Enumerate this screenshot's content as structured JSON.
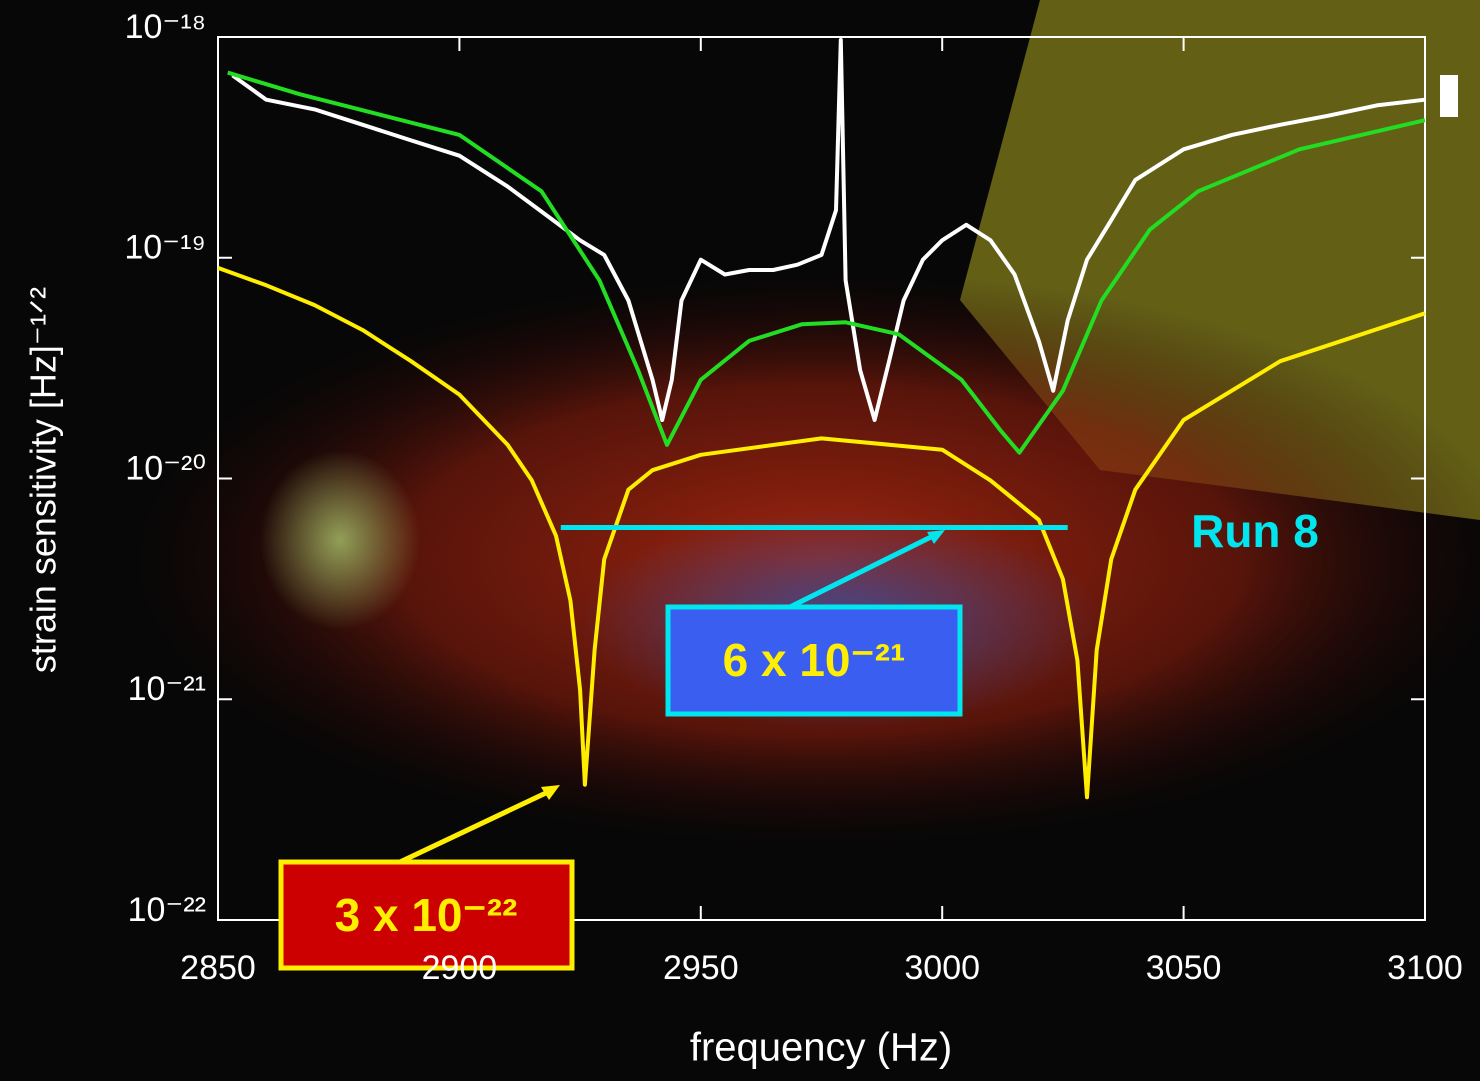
{
  "chart_data": {
    "type": "line",
    "xlabel": "frequency (Hz)",
    "ylabel": "strain sensitivity [Hz]⁻¹ᐟ²",
    "xlim": [
      2850,
      3100
    ],
    "xticks": [
      2850,
      2900,
      2950,
      3000,
      3050,
      3100
    ],
    "ylim": [
      1e-22,
      1e-18
    ],
    "ylog": true,
    "yticks": [
      {
        "value": 1e-22,
        "label": "10⁻²²"
      },
      {
        "value": 1e-21,
        "label": "10⁻²¹"
      },
      {
        "value": 1e-20,
        "label": "10⁻²⁰"
      },
      {
        "value": 1e-19,
        "label": "10⁻¹⁹"
      },
      {
        "value": 1e-18,
        "label": "10⁻¹⁸"
      }
    ],
    "series": [
      {
        "color": "#ffffff",
        "x": [
          2853,
          2860,
          2870,
          2880,
          2890,
          2900,
          2910,
          2918,
          2925,
          2930,
          2935,
          2940,
          2942,
          2944,
          2946,
          2950,
          2955,
          2960,
          2965,
          2970,
          2975,
          2978,
          2979,
          2980,
          2983,
          2986,
          2989,
          2992,
          2996,
          3000,
          3005,
          3010,
          3015,
          3020,
          3023,
          3026,
          3030,
          3035,
          3040,
          3050,
          3060,
          3070,
          3080,
          3090,
          3100
        ],
        "values": [
          6.7e-19,
          5.2e-19,
          4.7e-19,
          4e-19,
          3.4e-19,
          2.9e-19,
          2.1e-19,
          1.56e-19,
          1.2e-19,
          1.03e-19,
          6.4e-20,
          2.8e-20,
          1.84e-20,
          2.8e-20,
          6.4e-20,
          9.8e-20,
          8.4e-20,
          8.8e-20,
          8.8e-20,
          9.3e-20,
          1.03e-19,
          1.64e-19,
          9.7e-19,
          7.9e-20,
          3.1e-20,
          1.84e-20,
          3.4e-20,
          6.4e-20,
          9.8e-20,
          1.2e-19,
          1.41e-19,
          1.2e-19,
          8.4e-20,
          4.2e-20,
          2.5e-20,
          5.2e-20,
          9.8e-20,
          1.48e-19,
          2.25e-19,
          3.1e-19,
          3.6e-19,
          4e-19,
          4.4e-19,
          4.9e-19,
          5.2e-19
        ]
      },
      {
        "color": "#22dd22",
        "x": [
          2852,
          2867,
          2888,
          2900,
          2917,
          2929,
          2937,
          2943,
          2950,
          2960,
          2971,
          2980,
          2991,
          3004,
          3012,
          3016,
          3025,
          3033,
          3043,
          3053,
          3074,
          3100
        ],
        "values": [
          6.9e-19,
          5.5e-19,
          4.2e-19,
          3.6e-19,
          2e-19,
          7.9e-20,
          3.1e-20,
          1.42e-20,
          2.8e-20,
          4.2e-20,
          5e-20,
          5.1e-20,
          4.5e-20,
          2.8e-20,
          1.66e-20,
          1.31e-20,
          2.5e-20,
          6.4e-20,
          1.34e-19,
          2e-19,
          3.1e-19,
          4.2e-19
        ]
      },
      {
        "color": "#ffee00",
        "x": [
          2850,
          2860,
          2870,
          2880,
          2890,
          2900,
          2910,
          2915,
          2920,
          2923,
          2925,
          2926,
          2928,
          2930,
          2935,
          2940,
          2950,
          2975,
          3000,
          3010,
          3020,
          3025,
          3028,
          3030,
          3032,
          3035,
          3040,
          3050,
          3070,
          3100
        ],
        "values": [
          9e-20,
          7.5e-20,
          6.1e-20,
          4.7e-20,
          3.4e-20,
          2.4e-20,
          1.42e-20,
          9.8e-21,
          5.5e-21,
          2.8e-21,
          1.1e-21,
          4.1e-22,
          1.67e-21,
          4.3e-21,
          8.9e-21,
          1.09e-20,
          1.28e-20,
          1.52e-20,
          1.35e-20,
          9.8e-21,
          6.5e-21,
          3.5e-21,
          1.5e-21,
          3.6e-22,
          1.67e-21,
          4.3e-21,
          8.9e-21,
          1.84e-20,
          3.4e-20,
          5.6e-20
        ]
      },
      {
        "name": "Run 8",
        "color": "#00e5ee",
        "x": [
          2921,
          3026
        ],
        "values": [
          6e-21,
          6e-21
        ]
      }
    ],
    "annotations": [
      {
        "text": "6 x 10⁻²¹"
      },
      {
        "text": "3 x 10⁻²²"
      }
    ]
  }
}
